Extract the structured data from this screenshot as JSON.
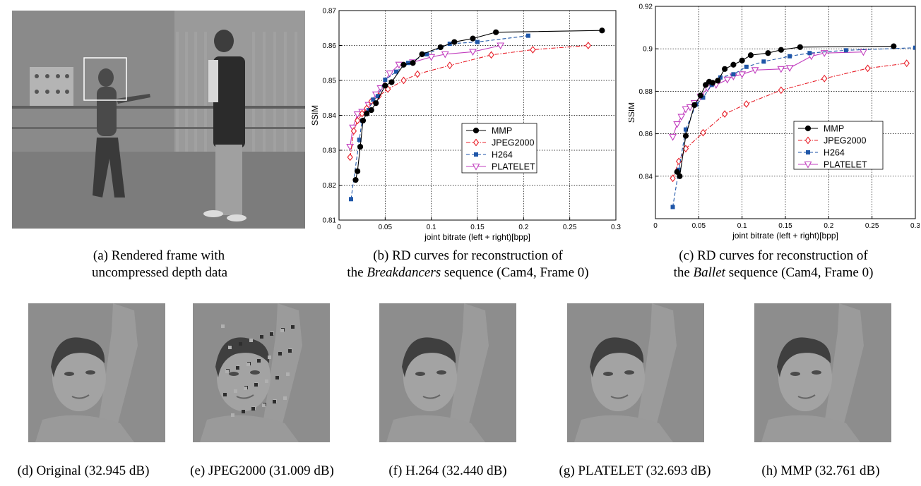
{
  "captions": {
    "a_line1": "(a) Rendered frame with",
    "a_line2": "uncompressed depth data",
    "b_line1": "(b) RD curves for reconstruction of",
    "b_pre": "the ",
    "b_seq": "Breakdancers",
    "b_post": " sequence (Cam4, Frame 0)",
    "c_line1": "(c) RD curves for reconstruction of",
    "c_pre": "the ",
    "c_seq": "Ballet",
    "c_post": " sequence (Cam4, Frame 0)",
    "d": "(d) Original (32.945 dB)",
    "e": "(e) JPEG2000 (31.009 dB)",
    "f": "(f) H.264 (32.440 dB)",
    "g": "(g) PLATELET (32.693 dB)",
    "h": "(h) MMP (32.761 dB)"
  },
  "colors": {
    "MMP": "#000000",
    "JPEG2000": "#e8202a",
    "H264": "#1f56a8",
    "PLATELET": "#c23fbf"
  },
  "chart_data": [
    {
      "type": "line",
      "xlabel": "joint bitrate (left + right)[bpp]",
      "ylabel": "SSIM",
      "xlim": [
        0,
        0.3
      ],
      "ylim": [
        0.81,
        0.87
      ],
      "xticks": [
        0,
        0.05,
        0.1,
        0.15,
        0.2,
        0.25,
        0.3
      ],
      "xtick_labels": [
        "0",
        "0.05",
        "0.1",
        "0.15",
        "0.2",
        "0.25",
        "0.3"
      ],
      "yticks": [
        0.81,
        0.82,
        0.83,
        0.84,
        0.85,
        0.86,
        0.87
      ],
      "ytick_labels": [
        "0.81",
        "0.82",
        "0.83",
        "0.84",
        "0.85",
        "0.86",
        "0.87"
      ],
      "grid": true,
      "legend_position": "center-right",
      "series": [
        {
          "name": "MMP",
          "marker": "circle",
          "dash": "solid",
          "x": [
            0.018,
            0.02,
            0.023,
            0.026,
            0.03,
            0.035,
            0.04,
            0.05,
            0.057,
            0.07,
            0.08,
            0.09,
            0.11,
            0.125,
            0.145,
            0.17,
            0.285
          ],
          "y": [
            0.8215,
            0.824,
            0.831,
            0.8385,
            0.8405,
            0.8415,
            0.8435,
            0.8485,
            0.8495,
            0.8545,
            0.855,
            0.8575,
            0.8595,
            0.861,
            0.862,
            0.8638,
            0.8643
          ]
        },
        {
          "name": "JPEG2000",
          "marker": "diamond",
          "dash": "dashdot",
          "x": [
            0.012,
            0.016,
            0.02,
            0.025,
            0.03,
            0.035,
            0.043,
            0.053,
            0.07,
            0.085,
            0.12,
            0.165,
            0.21,
            0.27
          ],
          "y": [
            0.828,
            0.8355,
            0.8385,
            0.8405,
            0.842,
            0.844,
            0.8455,
            0.8475,
            0.85,
            0.8518,
            0.8543,
            0.8573,
            0.8588,
            0.86
          ]
        },
        {
          "name": "H264",
          "marker": "square",
          "dash": "dash",
          "x": [
            0.013,
            0.022,
            0.025,
            0.032,
            0.037,
            0.042,
            0.05,
            0.062,
            0.075,
            0.095,
            0.12,
            0.15,
            0.205
          ],
          "y": [
            0.816,
            0.833,
            0.8385,
            0.8415,
            0.8445,
            0.8455,
            0.8502,
            0.8525,
            0.855,
            0.8575,
            0.8605,
            0.861,
            0.8628
          ]
        },
        {
          "name": "PLATELET",
          "marker": "triangle-down",
          "dash": "solid",
          "x": [
            0.012,
            0.015,
            0.02,
            0.025,
            0.032,
            0.04,
            0.045,
            0.055,
            0.065,
            0.08,
            0.1,
            0.115,
            0.145,
            0.175
          ],
          "y": [
            0.831,
            0.8365,
            0.8403,
            0.841,
            0.843,
            0.846,
            0.8478,
            0.852,
            0.8545,
            0.8552,
            0.8567,
            0.8575,
            0.8582,
            0.86
          ]
        }
      ]
    },
    {
      "type": "line",
      "xlabel": "joint bitrate (left + right)[bpp]",
      "ylabel": "SSIM",
      "xlim": [
        0,
        0.3
      ],
      "ylim": [
        0.82,
        0.92
      ],
      "xticks": [
        0,
        0.05,
        0.1,
        0.15,
        0.2,
        0.25,
        0.3
      ],
      "xtick_labels": [
        "0",
        "0.05",
        "0.1",
        "0.15",
        "0.2",
        "0.25",
        "0.3"
      ],
      "yticks": [
        0.84,
        0.86,
        0.88,
        0.9,
        0.92
      ],
      "ytick_labels": [
        "0.84",
        "0.86",
        "0.88",
        "0.9",
        "0.92"
      ],
      "grid": true,
      "legend_position": "lower-right",
      "series": [
        {
          "name": "MMP",
          "marker": "circle",
          "dash": "solid",
          "x": [
            0.025,
            0.028,
            0.035,
            0.045,
            0.052,
            0.058,
            0.062,
            0.066,
            0.072,
            0.08,
            0.09,
            0.1,
            0.11,
            0.13,
            0.145,
            0.167,
            0.275
          ],
          "y": [
            0.842,
            0.84,
            0.859,
            0.8735,
            0.878,
            0.883,
            0.8845,
            0.884,
            0.885,
            0.8905,
            0.8925,
            0.8945,
            0.897,
            0.898,
            0.8995,
            0.9008,
            0.9012
          ]
        },
        {
          "name": "JPEG2000",
          "marker": "diamond",
          "dash": "dashdot",
          "x": [
            0.02,
            0.027,
            0.035,
            0.055,
            0.08,
            0.105,
            0.145,
            0.195,
            0.245,
            0.29
          ],
          "y": [
            0.839,
            0.847,
            0.853,
            0.8605,
            0.8693,
            0.874,
            0.8805,
            0.886,
            0.8908,
            0.8932
          ]
        },
        {
          "name": "H264",
          "marker": "square",
          "dash": "dash",
          "x": [
            0.02,
            0.027,
            0.035,
            0.047,
            0.055,
            0.065,
            0.075,
            0.09,
            0.105,
            0.125,
            0.155,
            0.178,
            0.22,
            0.3
          ],
          "y": [
            0.8255,
            0.843,
            0.862,
            0.8738,
            0.877,
            0.883,
            0.8865,
            0.888,
            0.8915,
            0.894,
            0.8965,
            0.898,
            0.8993,
            0.9005
          ]
        },
        {
          "name": "PLATELET",
          "marker": "triangle-down",
          "dash": "solid",
          "x": [
            0.02,
            0.025,
            0.03,
            0.035,
            0.04,
            0.045,
            0.052,
            0.06,
            0.07,
            0.083,
            0.09,
            0.1,
            0.115,
            0.145,
            0.155,
            0.18,
            0.195,
            0.24
          ],
          "y": [
            0.8585,
            0.8645,
            0.868,
            0.8715,
            0.8725,
            0.8745,
            0.8775,
            0.8815,
            0.883,
            0.8855,
            0.887,
            0.888,
            0.89,
            0.8905,
            0.891,
            0.8965,
            0.898,
            0.8985
          ]
        }
      ]
    }
  ]
}
